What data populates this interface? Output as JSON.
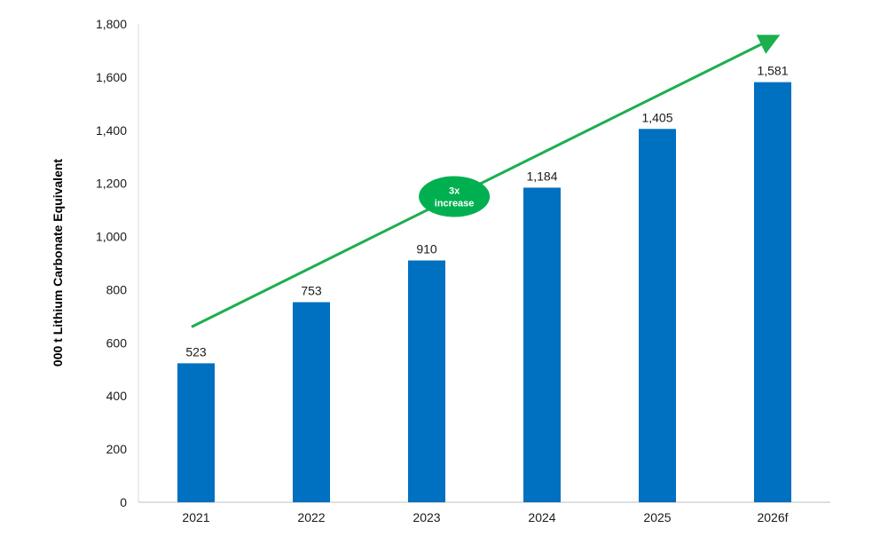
{
  "chart_data": {
    "type": "bar",
    "categories": [
      "2021",
      "2022",
      "2023",
      "2024",
      "2025",
      "2026f"
    ],
    "values": [
      523,
      753,
      910,
      1184,
      1405,
      1581
    ],
    "data_labels": [
      "523",
      "753",
      "910",
      "1,184",
      "1,405",
      "1,581"
    ],
    "ylabel": "000 t Lithium Carbonate Equivalent",
    "xlabel": "",
    "ylim": [
      0,
      1800
    ],
    "yticks": [
      0,
      200,
      400,
      600,
      800,
      1000,
      1200,
      1400,
      1600,
      1800
    ],
    "ytick_labels": [
      "0",
      "200",
      "400",
      "600",
      "800",
      "1,000",
      "1,200",
      "1,400",
      "1,600",
      "1,800"
    ],
    "grid": false,
    "annotation": {
      "type": "trend-arrow",
      "from_value": 660,
      "to_value": 1750,
      "badge_lines": [
        "3x",
        "increase"
      ]
    },
    "colors": {
      "bar": "#0070C0",
      "arrow": "#1CAF4E",
      "badge": "#00B050"
    }
  }
}
